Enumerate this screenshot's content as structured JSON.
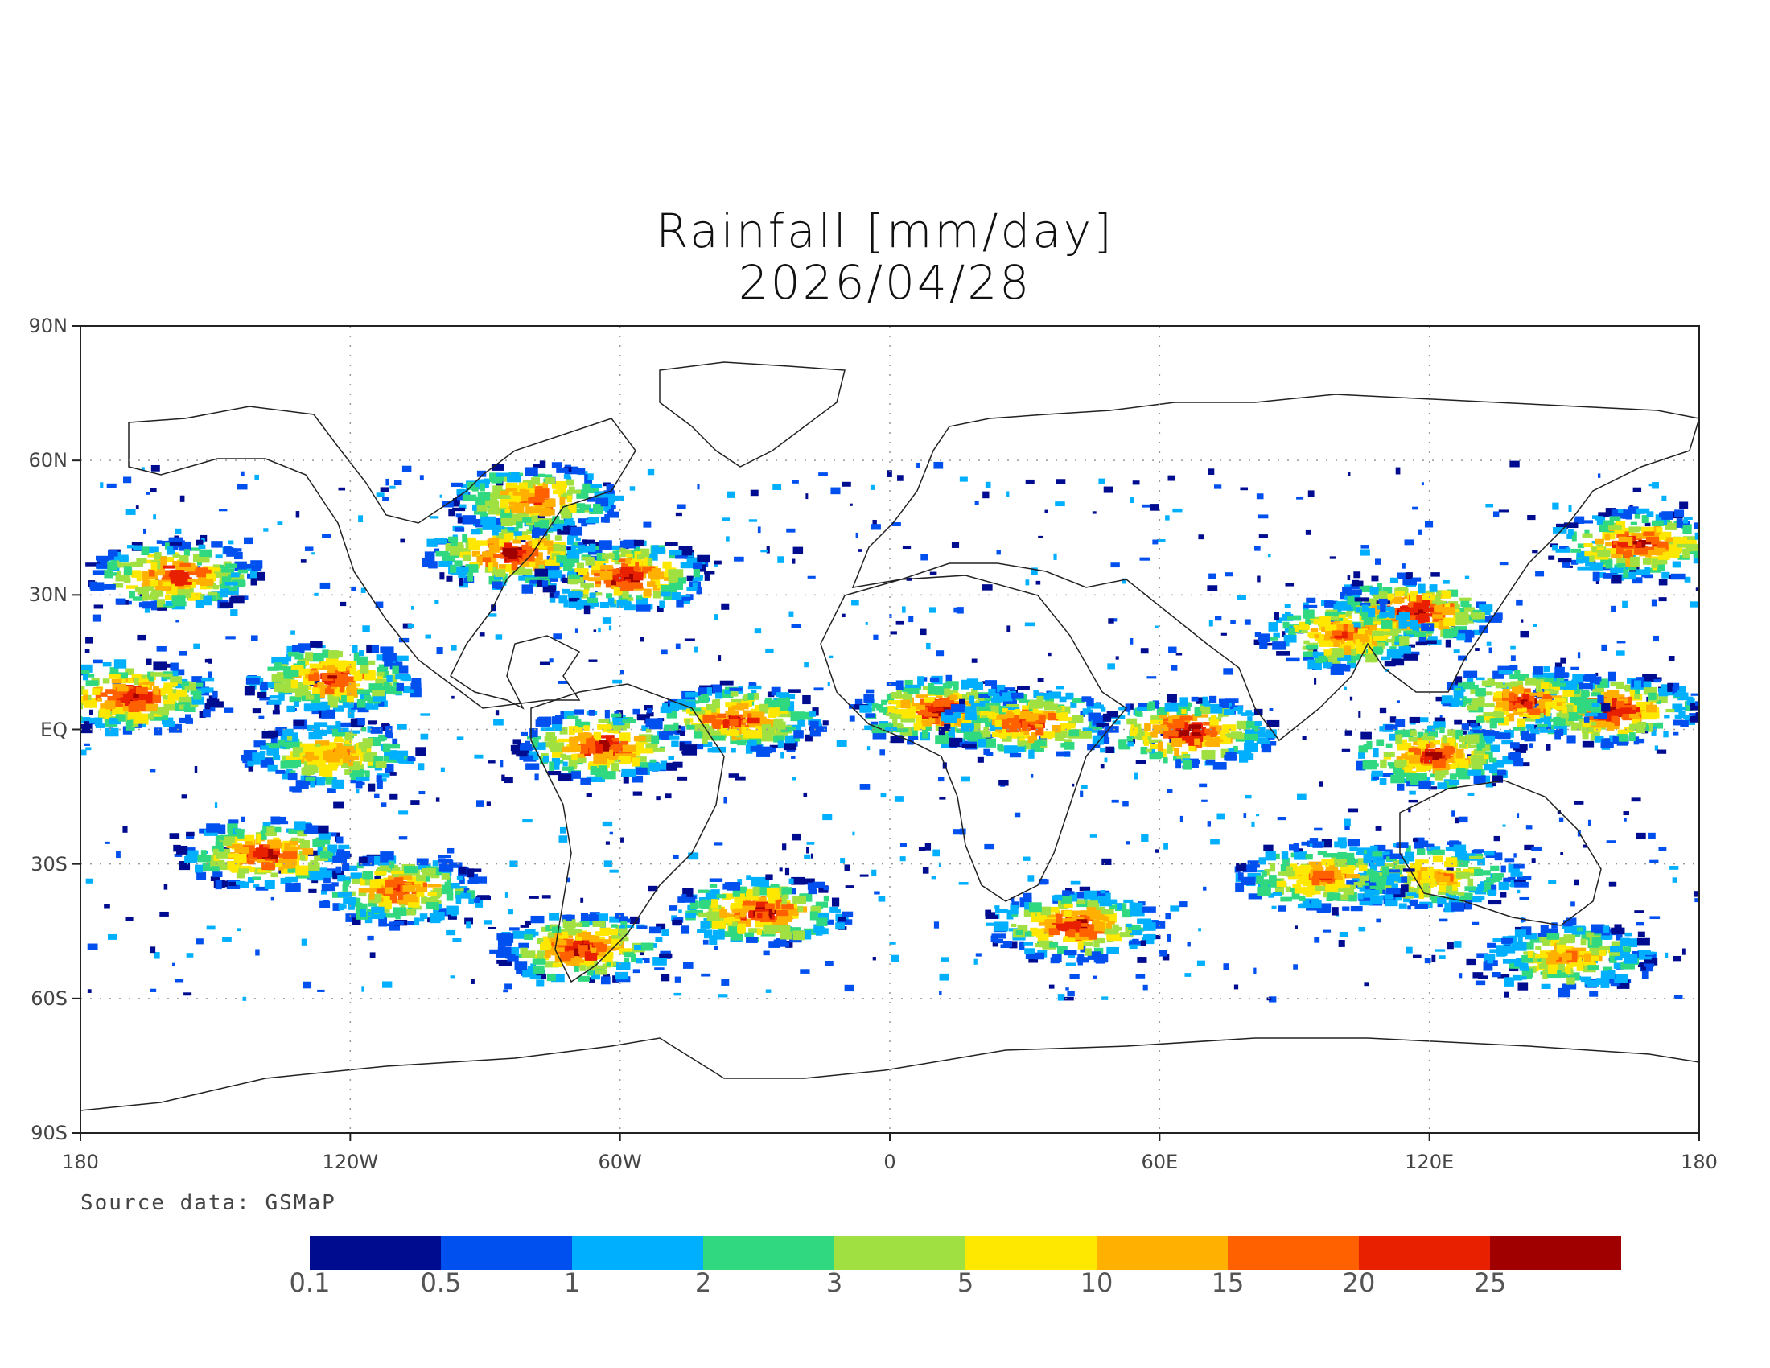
{
  "map": {
    "title": "Rainfall [mm/day]",
    "date": "2026/04/28",
    "source": "Source data: GSMaP",
    "lat_labels": [
      "90N",
      "60N",
      "30N",
      "EQ",
      "30S",
      "60S",
      "90S"
    ],
    "lon_labels": [
      "180",
      "120W",
      "60W",
      "0",
      "60E",
      "120E",
      "180"
    ],
    "projection": "equirectangular",
    "extent": {
      "lon": [
        -180,
        180
      ],
      "lat": [
        -90,
        90
      ]
    },
    "data_coverage_lat": [
      -60,
      60
    ],
    "colorbar": {
      "labels": [
        "0.1",
        "0.5",
        "1",
        "2",
        "3",
        "5",
        "10",
        "15",
        "20",
        "25"
      ],
      "colors": [
        "#000c90",
        "#0050f0",
        "#00b0ff",
        "#30d880",
        "#a0e040",
        "#ffe800",
        "#ffb000",
        "#ff6000",
        "#e82000",
        "#a00000"
      ]
    },
    "rain_bands": [
      {
        "lon": -160,
        "lat": 35,
        "intensity": 0.9
      },
      {
        "lon": -170,
        "lat": 8,
        "intensity": 0.95
      },
      {
        "lon": -125,
        "lat": 12,
        "intensity": 0.85
      },
      {
        "lon": -125,
        "lat": -5,
        "intensity": 0.7
      },
      {
        "lon": -140,
        "lat": -27,
        "intensity": 0.9
      },
      {
        "lon": -110,
        "lat": -35,
        "intensity": 0.8
      },
      {
        "lon": -85,
        "lat": 40,
        "intensity": 0.95
      },
      {
        "lon": -60,
        "lat": 35,
        "intensity": 0.95
      },
      {
        "lon": -80,
        "lat": 52,
        "intensity": 0.8
      },
      {
        "lon": -65,
        "lat": -3,
        "intensity": 0.9
      },
      {
        "lon": -70,
        "lat": -48,
        "intensity": 0.9
      },
      {
        "lon": -30,
        "lat": -40,
        "intensity": 0.9
      },
      {
        "lon": -35,
        "lat": 3,
        "intensity": 0.85
      },
      {
        "lon": 10,
        "lat": 5,
        "intensity": 0.9
      },
      {
        "lon": 30,
        "lat": 2,
        "intensity": 0.85
      },
      {
        "lon": 40,
        "lat": -43,
        "intensity": 0.9
      },
      {
        "lon": 65,
        "lat": 0,
        "intensity": 0.95
      },
      {
        "lon": 115,
        "lat": 27,
        "intensity": 0.95
      },
      {
        "lon": 100,
        "lat": 22,
        "intensity": 0.8
      },
      {
        "lon": 120,
        "lat": -5,
        "intensity": 0.85
      },
      {
        "lon": 160,
        "lat": 5,
        "intensity": 0.95
      },
      {
        "lon": 140,
        "lat": 7,
        "intensity": 0.85
      },
      {
        "lon": 165,
        "lat": 42,
        "intensity": 0.9
      },
      {
        "lon": 120,
        "lat": -32,
        "intensity": 0.7
      },
      {
        "lon": 150,
        "lat": -50,
        "intensity": 0.7
      },
      {
        "lon": 95,
        "lat": -32,
        "intensity": 0.75
      }
    ]
  }
}
